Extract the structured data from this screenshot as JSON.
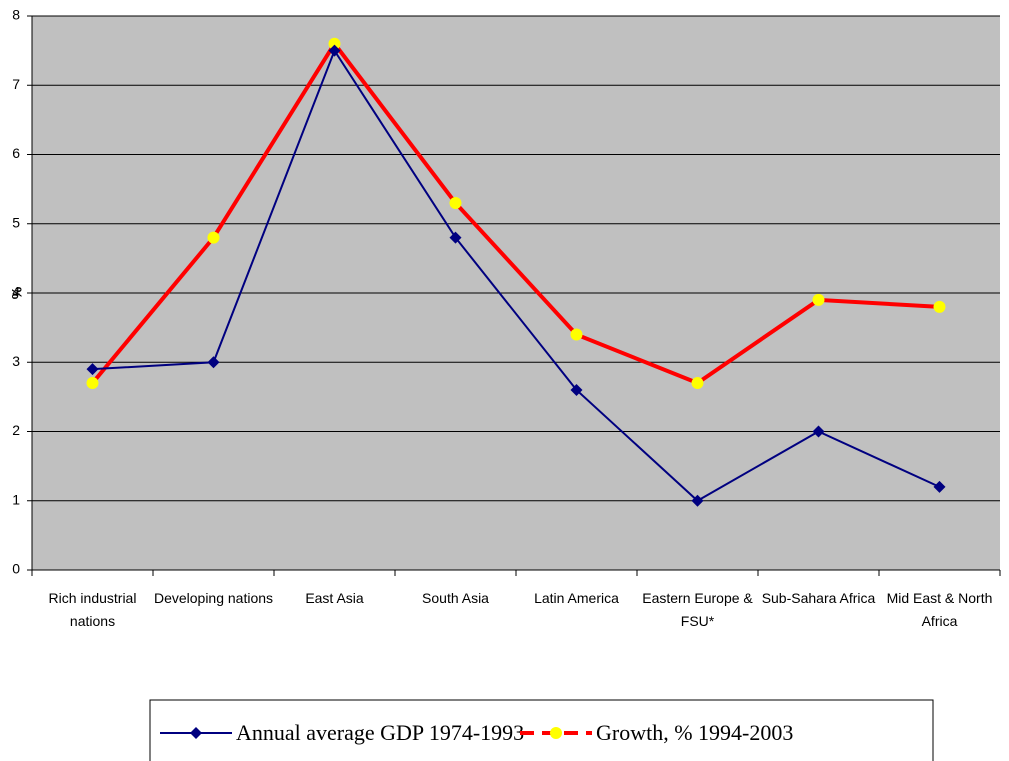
{
  "chart_data": {
    "type": "line",
    "categories": [
      "Rich industrial nations",
      "Developing nations",
      "East Asia",
      "South Asia",
      "Latin America",
      "Eastern Europe & FSU*",
      "Sub-Sahara Africa",
      "Mid East & North Africa"
    ],
    "series": [
      {
        "name": "Annual average GDP 1974-1993",
        "color": "#000080",
        "marker": "diamond",
        "marker_color": "#000080",
        "dash": false,
        "values": [
          2.9,
          3.0,
          7.5,
          4.8,
          2.6,
          1.0,
          2.0,
          1.2
        ]
      },
      {
        "name": "Growth, % 1994-2003",
        "color": "#ff0000",
        "marker": "circle",
        "marker_color": "#ffff00",
        "dash": true,
        "values": [
          2.7,
          4.8,
          7.6,
          5.3,
          3.4,
          2.7,
          3.9,
          3.8
        ]
      }
    ],
    "ylabel": "%",
    "ylim": [
      0,
      8
    ],
    "yticks": [
      0,
      1,
      2,
      3,
      4,
      5,
      6,
      7,
      8
    ],
    "grid": true,
    "plot_background": "#c0c0c0",
    "legend": "bottom"
  }
}
